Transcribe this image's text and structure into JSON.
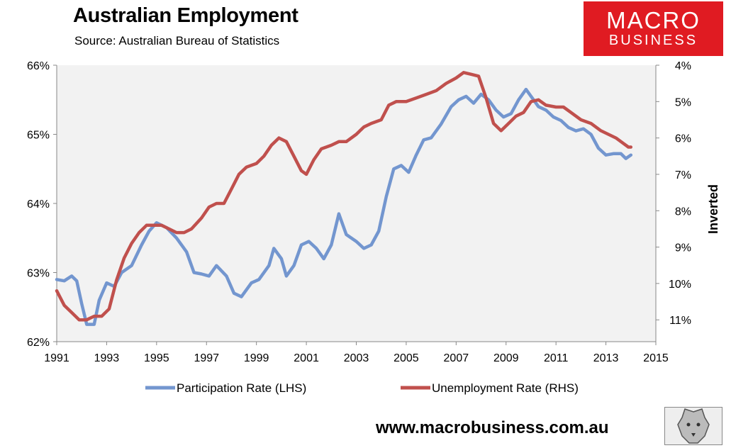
{
  "header": {
    "title": "Australian Employment",
    "subtitle": "Source: Australian Bureau of Statistics"
  },
  "logo": {
    "line1": "MACRO",
    "line2": "BUSINESS",
    "color": "#e01b22"
  },
  "footer": {
    "url": "www.macrobusiness.com.au",
    "mascot": "wolf-icon"
  },
  "chart_data": {
    "type": "line",
    "title": "Australian Employment",
    "xlabel": "",
    "ylabel_left": "",
    "ylabel_right": "Inverted",
    "x_range": [
      1991,
      2015
    ],
    "x_ticks": [
      "1991",
      "1993",
      "1995",
      "1997",
      "1999",
      "2001",
      "2003",
      "2005",
      "2007",
      "2009",
      "2011",
      "2013",
      "2015"
    ],
    "y_left_range": [
      62,
      66
    ],
    "y_left_ticks": [
      "62%",
      "63%",
      "64%",
      "65%",
      "66%"
    ],
    "y_right_range": [
      4,
      11.6
    ],
    "y_right_inverted": true,
    "y_right_ticks": [
      "4%",
      "5%",
      "6%",
      "7%",
      "8%",
      "9%",
      "10%",
      "11%"
    ],
    "legend_position": "bottom",
    "series": [
      {
        "name": "Participation Rate (LHS)",
        "axis": "left",
        "color": "#7396cf",
        "x": [
          1991.0,
          1991.3,
          1991.6,
          1991.8,
          1992.0,
          1992.2,
          1992.5,
          1992.7,
          1993.0,
          1993.3,
          1993.6,
          1994.0,
          1994.4,
          1994.7,
          1995.0,
          1995.4,
          1995.8,
          1996.2,
          1996.5,
          1996.8,
          1997.1,
          1997.4,
          1997.8,
          1998.1,
          1998.4,
          1998.8,
          1999.1,
          1999.5,
          1999.7,
          2000.0,
          2000.2,
          2000.5,
          2000.8,
          2001.1,
          2001.4,
          2001.7,
          2002.0,
          2002.3,
          2002.6,
          2003.0,
          2003.3,
          2003.6,
          2003.9,
          2004.2,
          2004.5,
          2004.8,
          2005.1,
          2005.4,
          2005.7,
          2006.0,
          2006.4,
          2006.8,
          2007.1,
          2007.4,
          2007.7,
          2008.0,
          2008.3,
          2008.6,
          2008.9,
          2009.2,
          2009.5,
          2009.8,
          2010.0,
          2010.3,
          2010.6,
          2010.9,
          2011.2,
          2011.5,
          2011.8,
          2012.1,
          2012.4,
          2012.7,
          2013.0,
          2013.3,
          2013.6,
          2013.8,
          2014.0
        ],
        "values": [
          62.9,
          62.88,
          62.95,
          62.88,
          62.55,
          62.25,
          62.25,
          62.6,
          62.85,
          62.8,
          63.0,
          63.1,
          63.4,
          63.6,
          63.72,
          63.65,
          63.5,
          63.3,
          63.0,
          62.98,
          62.95,
          63.1,
          62.95,
          62.7,
          62.65,
          62.85,
          62.9,
          63.1,
          63.35,
          63.2,
          62.95,
          63.1,
          63.4,
          63.45,
          63.35,
          63.2,
          63.4,
          63.85,
          63.55,
          63.45,
          63.35,
          63.4,
          63.6,
          64.1,
          64.5,
          64.55,
          64.45,
          64.7,
          64.92,
          64.95,
          65.15,
          65.4,
          65.5,
          65.55,
          65.45,
          65.58,
          65.5,
          65.35,
          65.25,
          65.3,
          65.5,
          65.65,
          65.55,
          65.4,
          65.35,
          65.25,
          65.2,
          65.1,
          65.05,
          65.08,
          65.0,
          64.8,
          64.7,
          64.72,
          64.72,
          64.65,
          64.7
        ]
      },
      {
        "name": "Unemployment Rate (RHS)",
        "axis": "right",
        "color": "#c0504d",
        "x": [
          1991.0,
          1991.3,
          1991.6,
          1991.9,
          1992.2,
          1992.5,
          1992.8,
          1993.1,
          1993.4,
          1993.7,
          1994.0,
          1994.3,
          1994.6,
          1994.9,
          1995.2,
          1995.5,
          1995.8,
          1996.1,
          1996.4,
          1996.8,
          1997.1,
          1997.4,
          1997.7,
          1998.0,
          1998.3,
          1998.6,
          1999.0,
          1999.3,
          1999.6,
          1999.9,
          2000.2,
          2000.5,
          2000.8,
          2001.0,
          2001.3,
          2001.6,
          2002.0,
          2002.3,
          2002.6,
          2003.0,
          2003.3,
          2003.6,
          2004.0,
          2004.3,
          2004.6,
          2005.0,
          2005.4,
          2005.8,
          2006.2,
          2006.6,
          2007.0,
          2007.3,
          2007.6,
          2007.9,
          2008.2,
          2008.5,
          2008.8,
          2009.1,
          2009.4,
          2009.7,
          2010.0,
          2010.3,
          2010.6,
          2011.0,
          2011.3,
          2011.6,
          2012.0,
          2012.4,
          2012.8,
          2013.1,
          2013.4,
          2013.7,
          2013.9,
          2014.0
        ],
        "values": [
          10.2,
          10.6,
          10.8,
          11.0,
          11.0,
          10.9,
          10.9,
          10.7,
          9.9,
          9.3,
          8.9,
          8.6,
          8.4,
          8.4,
          8.4,
          8.5,
          8.6,
          8.6,
          8.5,
          8.2,
          7.9,
          7.8,
          7.8,
          7.4,
          7.0,
          6.8,
          6.7,
          6.5,
          6.2,
          6.0,
          6.1,
          6.5,
          6.9,
          7.0,
          6.6,
          6.3,
          6.2,
          6.1,
          6.1,
          5.9,
          5.7,
          5.6,
          5.5,
          5.1,
          5.0,
          5.0,
          4.9,
          4.8,
          4.7,
          4.5,
          4.35,
          4.2,
          4.25,
          4.3,
          4.9,
          5.6,
          5.8,
          5.6,
          5.4,
          5.3,
          5.0,
          4.95,
          5.1,
          5.15,
          5.15,
          5.3,
          5.5,
          5.6,
          5.8,
          5.9,
          6.0,
          6.15,
          6.25,
          6.25
        ]
      }
    ]
  }
}
